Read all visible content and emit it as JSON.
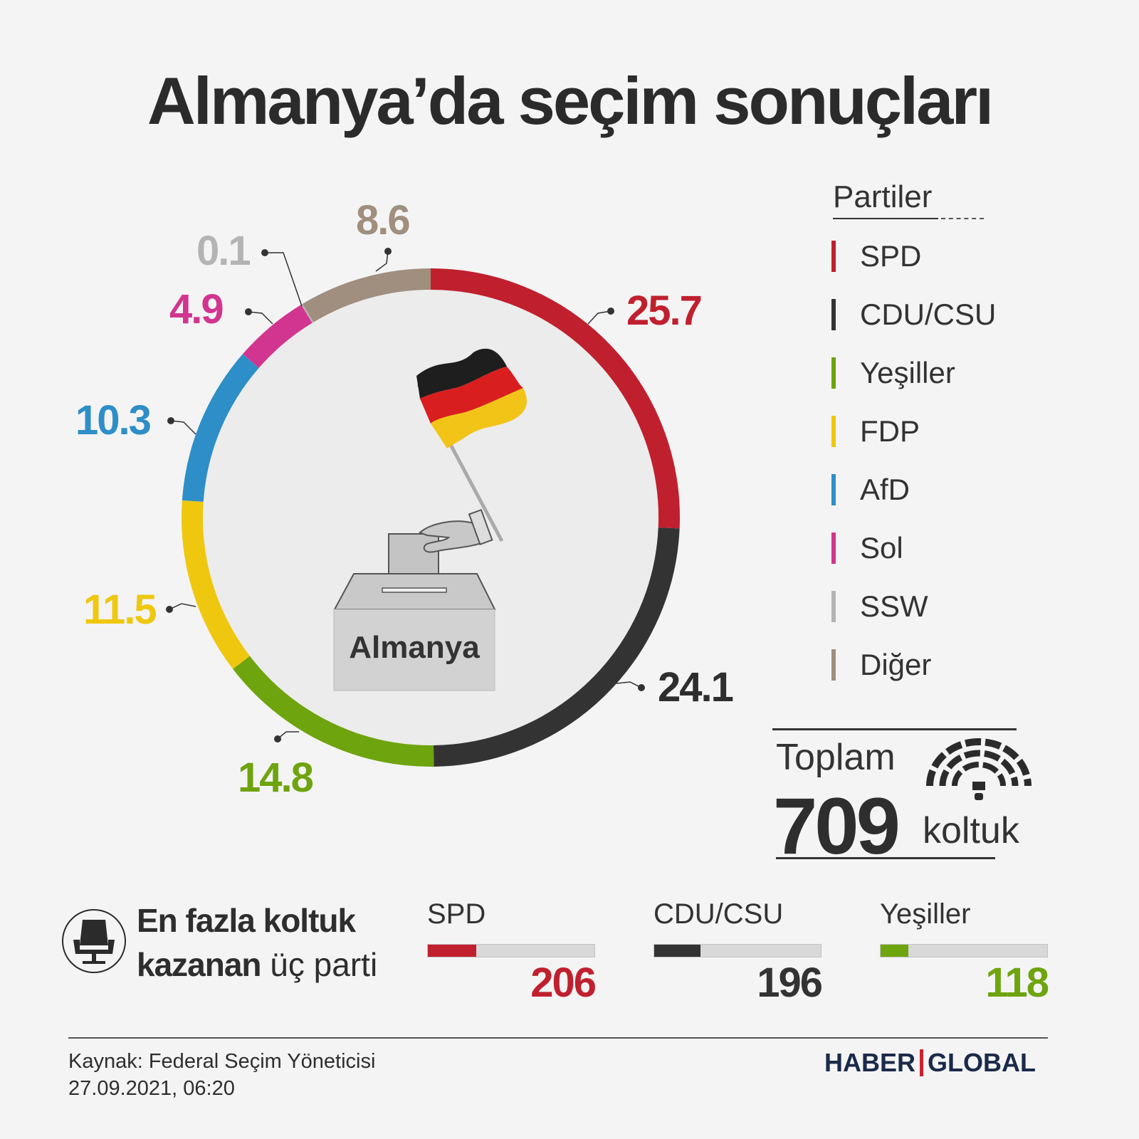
{
  "title": "Almanya’da seçim sonuçları",
  "colors": {
    "background": "#f4f4f4",
    "inner_circle": "#ececec"
  },
  "chart_data": {
    "type": "pie",
    "variant": "donut",
    "unit": "%",
    "start": "top",
    "direction": "clockwise",
    "series": [
      {
        "name": "SPD",
        "value": 25.7,
        "label": "25.7",
        "color": "#c0202e"
      },
      {
        "name": "CDU/CSU",
        "value": 24.1,
        "label": "24.1",
        "color": "#333333"
      },
      {
        "name": "Yeşiller",
        "value": 14.8,
        "label": "14.8",
        "color": "#6ea40e"
      },
      {
        "name": "FDP",
        "value": 11.5,
        "label": "11.5",
        "color": "#efc70f"
      },
      {
        "name": "AfD",
        "value": 10.3,
        "label": "10.3",
        "color": "#2d8ec8"
      },
      {
        "name": "Sol",
        "value": 4.9,
        "label": "4.9",
        "color": "#d2358f"
      },
      {
        "name": "SSW",
        "value": 0.1,
        "label": "0.1",
        "color": "#b4b4b4"
      },
      {
        "name": "Diğer",
        "value": 8.6,
        "label": "8.6",
        "color": "#a08e7e"
      }
    ],
    "center_label": "Almanya",
    "center_icons": [
      "german-flag-icon",
      "ballot-box-icon"
    ]
  },
  "legend": {
    "title": "Partiler",
    "placement": "right"
  },
  "total": {
    "label": "Toplam",
    "value": "709",
    "unit": "koltuk",
    "icon": "parliament-icon"
  },
  "top_seats": {
    "heading_bold": "En fazla koltuk",
    "heading_bold2": "kazanan",
    "heading_rest": " üç parti",
    "icon": "chair-icon",
    "total_seats": 709,
    "parties": [
      {
        "name": "SPD",
        "seats": "206",
        "fraction": 0.29,
        "color": "#c0202e"
      },
      {
        "name": "CDU/CSU",
        "seats": "196",
        "fraction": 0.276,
        "color": "#333333"
      },
      {
        "name": "Yeşiller",
        "seats": "118",
        "fraction": 0.166,
        "color": "#6ea40e"
      }
    ]
  },
  "footer": {
    "source": "Kaynak: Federal Seçim Yöneticisi",
    "date": "27.09.2021, 06:20",
    "logo_left": "HABER",
    "logo_right": "GLOBAL"
  }
}
